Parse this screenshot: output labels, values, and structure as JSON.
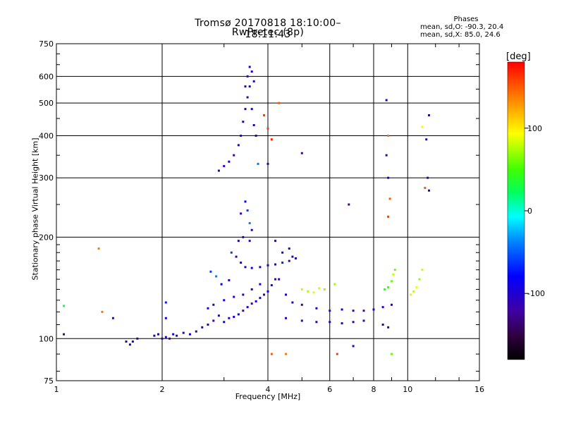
{
  "title_line1": "Tromsø 20170818 18:10:00–18:11:43",
  "title_line2": "RwPretec (8p)",
  "stats": {
    "header": "Phases",
    "line1": "mean, sd,O: -90.3, 20.4",
    "line2": "mean, sd,X:  85.0, 24.6"
  },
  "colorbar": {
    "unit_label": "[deg]",
    "ticks": [
      "100",
      "0",
      "-100"
    ],
    "tick_values": [
      100,
      0,
      -100
    ],
    "range": [
      -180,
      180
    ]
  },
  "chart_data": {
    "type": "scatter",
    "xlabel": "Frequency [MHz]",
    "ylabel": "Stationary phase Virtual Height [km]",
    "x_scale": "log",
    "y_scale": "log",
    "xlim": [
      1,
      16
    ],
    "ylim": [
      75,
      750
    ],
    "xtick_labels": [
      "1",
      "2",
      "4",
      "6",
      "8",
      "10",
      "16"
    ],
    "xtick_values": [
      1,
      2,
      4,
      6,
      8,
      10,
      16
    ],
    "ytick_labels": [
      "750",
      "600",
      "500",
      "400",
      "300",
      "200",
      "100",
      "75"
    ],
    "ytick_values": [
      750,
      600,
      500,
      400,
      300,
      200,
      100,
      75
    ],
    "grid": true,
    "series": [
      {
        "color_by": "phase_deg",
        "points": [
          [
            1.05,
            103,
            -110
          ],
          [
            1.05,
            125,
            30
          ],
          [
            1.32,
            185,
            140
          ],
          [
            1.35,
            120,
            140
          ],
          [
            1.45,
            115,
            -110
          ],
          [
            1.58,
            98,
            -110
          ],
          [
            1.62,
            96,
            -100
          ],
          [
            1.65,
            98,
            -90
          ],
          [
            1.7,
            100,
            -100
          ],
          [
            1.9,
            102,
            -100
          ],
          [
            1.95,
            103,
            -90
          ],
          [
            2.0,
            100,
            -110
          ],
          [
            2.05,
            101,
            -100
          ],
          [
            2.1,
            100,
            -120
          ],
          [
            2.15,
            103,
            -80
          ],
          [
            2.05,
            115,
            -100
          ],
          [
            2.05,
            128,
            -70
          ],
          [
            2.2,
            102,
            -110
          ],
          [
            2.3,
            104,
            -100
          ],
          [
            2.4,
            103,
            -90
          ],
          [
            2.5,
            105,
            -110
          ],
          [
            2.6,
            108,
            -90
          ],
          [
            2.7,
            110,
            -100
          ],
          [
            2.8,
            113,
            -120
          ],
          [
            2.9,
            117,
            -110
          ],
          [
            3.0,
            112,
            -90
          ],
          [
            3.1,
            115,
            -110
          ],
          [
            3.2,
            116,
            -100
          ],
          [
            3.3,
            118,
            -90
          ],
          [
            3.4,
            121,
            -110
          ],
          [
            3.5,
            124,
            -100
          ],
          [
            3.6,
            127,
            -120
          ],
          [
            3.7,
            129,
            -100
          ],
          [
            3.8,
            132,
            -90
          ],
          [
            3.9,
            135,
            -110
          ],
          [
            4.0,
            138,
            -100
          ],
          [
            4.1,
            144,
            -90
          ],
          [
            4.2,
            150,
            -110
          ],
          [
            2.7,
            123,
            -100
          ],
          [
            2.8,
            126,
            -110
          ],
          [
            3.0,
            130,
            -90
          ],
          [
            3.2,
            133,
            -110
          ],
          [
            3.4,
            135,
            -100
          ],
          [
            3.6,
            140,
            -110
          ],
          [
            3.8,
            145,
            -100
          ],
          [
            2.75,
            158,
            -60
          ],
          [
            2.85,
            153,
            -40
          ],
          [
            2.95,
            145,
            -80
          ],
          [
            3.1,
            149,
            -110
          ],
          [
            3.15,
            180,
            -60
          ],
          [
            3.25,
            175,
            -110
          ],
          [
            3.35,
            168,
            -100
          ],
          [
            3.45,
            163,
            -110
          ],
          [
            3.6,
            162,
            -90
          ],
          [
            3.8,
            163,
            -100
          ],
          [
            4.0,
            165,
            -110
          ],
          [
            4.2,
            166,
            -90
          ],
          [
            4.4,
            168,
            -70
          ],
          [
            4.6,
            170,
            -110
          ],
          [
            4.8,
            173,
            -90
          ],
          [
            3.35,
            235,
            -110
          ],
          [
            3.45,
            255,
            -90
          ],
          [
            3.5,
            240,
            -60
          ],
          [
            3.55,
            220,
            -40
          ],
          [
            3.6,
            210,
            -100
          ],
          [
            3.4,
            200,
            -110
          ],
          [
            3.3,
            195,
            -100
          ],
          [
            3.55,
            195,
            -110
          ],
          [
            4.2,
            195,
            -110
          ],
          [
            4.4,
            180,
            -100
          ],
          [
            4.6,
            185,
            -110
          ],
          [
            4.7,
            175,
            -110
          ],
          [
            4.3,
            150,
            -110
          ],
          [
            4.5,
            135,
            -100
          ],
          [
            4.7,
            128,
            -110
          ],
          [
            5.0,
            126,
            -120
          ],
          [
            5.5,
            123,
            -110
          ],
          [
            6.0,
            121,
            -110
          ],
          [
            6.5,
            122,
            -100
          ],
          [
            7.0,
            121,
            -110
          ],
          [
            7.5,
            121,
            -120
          ],
          [
            8.0,
            122,
            -110
          ],
          [
            8.5,
            124,
            -100
          ],
          [
            9.0,
            126,
            -110
          ],
          [
            4.5,
            115,
            -110
          ],
          [
            5.0,
            113,
            -110
          ],
          [
            5.5,
            112,
            -100
          ],
          [
            6.0,
            112,
            -110
          ],
          [
            6.5,
            111,
            -90
          ],
          [
            7.0,
            112,
            -110
          ],
          [
            7.5,
            113,
            -110
          ],
          [
            5.0,
            140,
            80
          ],
          [
            5.2,
            138,
            75
          ],
          [
            5.4,
            137,
            85
          ],
          [
            5.6,
            141,
            80
          ],
          [
            5.8,
            140,
            70
          ],
          [
            6.2,
            145,
            70
          ],
          [
            8.6,
            140,
            40
          ],
          [
            8.8,
            142,
            50
          ],
          [
            9.0,
            148,
            60
          ],
          [
            9.1,
            155,
            80
          ],
          [
            9.2,
            160,
            60
          ],
          [
            10.2,
            135,
            85
          ],
          [
            10.4,
            138,
            80
          ],
          [
            10.6,
            142,
            90
          ],
          [
            10.8,
            150,
            70
          ],
          [
            11.0,
            160,
            80
          ],
          [
            2.9,
            315,
            -100
          ],
          [
            3.0,
            325,
            -110
          ],
          [
            3.1,
            335,
            -100
          ],
          [
            3.2,
            350,
            -120
          ],
          [
            3.3,
            375,
            -100
          ],
          [
            3.35,
            400,
            -110
          ],
          [
            3.4,
            440,
            -90
          ],
          [
            3.45,
            480,
            -100
          ],
          [
            3.5,
            520,
            -110
          ],
          [
            3.55,
            560,
            -100
          ],
          [
            3.5,
            600,
            -110
          ],
          [
            3.55,
            640,
            -90
          ],
          [
            3.6,
            620,
            -110
          ],
          [
            3.65,
            580,
            -100
          ],
          [
            3.45,
            560,
            -110
          ],
          [
            3.6,
            480,
            -90
          ],
          [
            3.65,
            430,
            -100
          ],
          [
            3.7,
            400,
            -110
          ],
          [
            3.75,
            330,
            -40
          ],
          [
            3.9,
            460,
            160
          ],
          [
            4.0,
            420,
            160
          ],
          [
            4.1,
            390,
            170
          ],
          [
            4.3,
            500,
            150
          ],
          [
            4.0,
            330,
            -110
          ],
          [
            5.0,
            355,
            -120
          ],
          [
            6.8,
            250,
            -120
          ],
          [
            8.7,
            510,
            -100
          ],
          [
            8.8,
            400,
            140
          ],
          [
            8.7,
            350,
            -110
          ],
          [
            8.8,
            300,
            -90
          ],
          [
            8.9,
            260,
            150
          ],
          [
            8.8,
            230,
            160
          ],
          [
            11.5,
            460,
            -110
          ],
          [
            11.3,
            390,
            -110
          ],
          [
            11.4,
            300,
            -100
          ],
          [
            11.5,
            275,
            -100
          ],
          [
            11.0,
            425,
            90
          ],
          [
            11.2,
            280,
            150
          ],
          [
            8.5,
            110,
            -100
          ],
          [
            8.8,
            108,
            -110
          ],
          [
            9.0,
            90,
            60
          ],
          [
            6.3,
            90,
            160
          ],
          [
            7.0,
            95,
            -110
          ],
          [
            4.1,
            90,
            150
          ],
          [
            4.5,
            90,
            140
          ]
        ]
      }
    ]
  }
}
